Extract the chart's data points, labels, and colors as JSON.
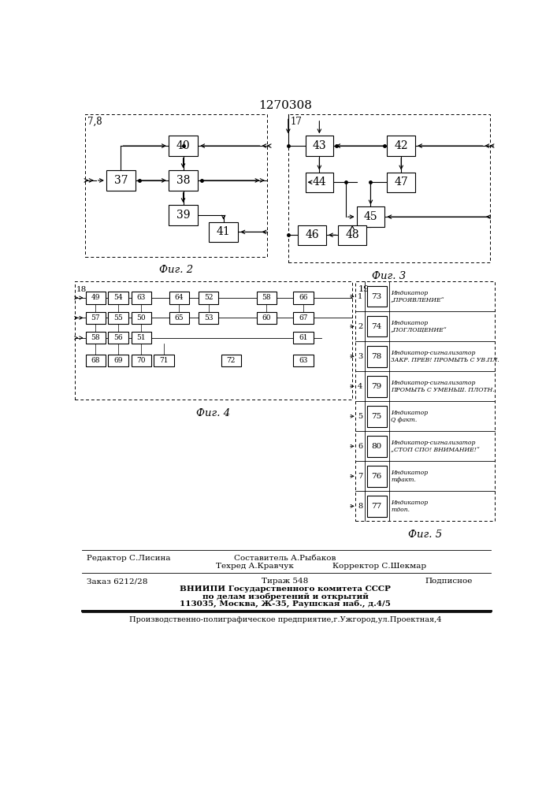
{
  "title": "1270308",
  "bg": "#ffffff",
  "fig2_label": "7,8",
  "fig3_label": "17",
  "fig4_label": "18",
  "fig5_label": "19",
  "fig2_caption": "Фиг. 2",
  "fig3_caption": "Фиг. 3",
  "fig4_caption": "Фиг. 4",
  "fig5_caption": "Фиг. 5",
  "footer_editor": "Редактор С.Лисина",
  "footer_sostavitel": "Составитель А.Рыбаков",
  "footer_techred": "Техред А.Кравчук",
  "footer_corrector": "Корректор С.Шекмар",
  "footer_order": "Заказ 6212/28",
  "footer_tirazh": "Тираж 548",
  "footer_podpisnoe": "Подписное",
  "footer_vniipi": "ВНИИПИ Государственного комитета СССР",
  "footer_po_delam": "по делам изобретений и открытий",
  "footer_address": "113035, Москва, Ж-35, Раушская наб., д.4/5",
  "footer_bottom": "Производственно-полиграфическое предприятие,г.Ужгород,ул.Проектная,4"
}
